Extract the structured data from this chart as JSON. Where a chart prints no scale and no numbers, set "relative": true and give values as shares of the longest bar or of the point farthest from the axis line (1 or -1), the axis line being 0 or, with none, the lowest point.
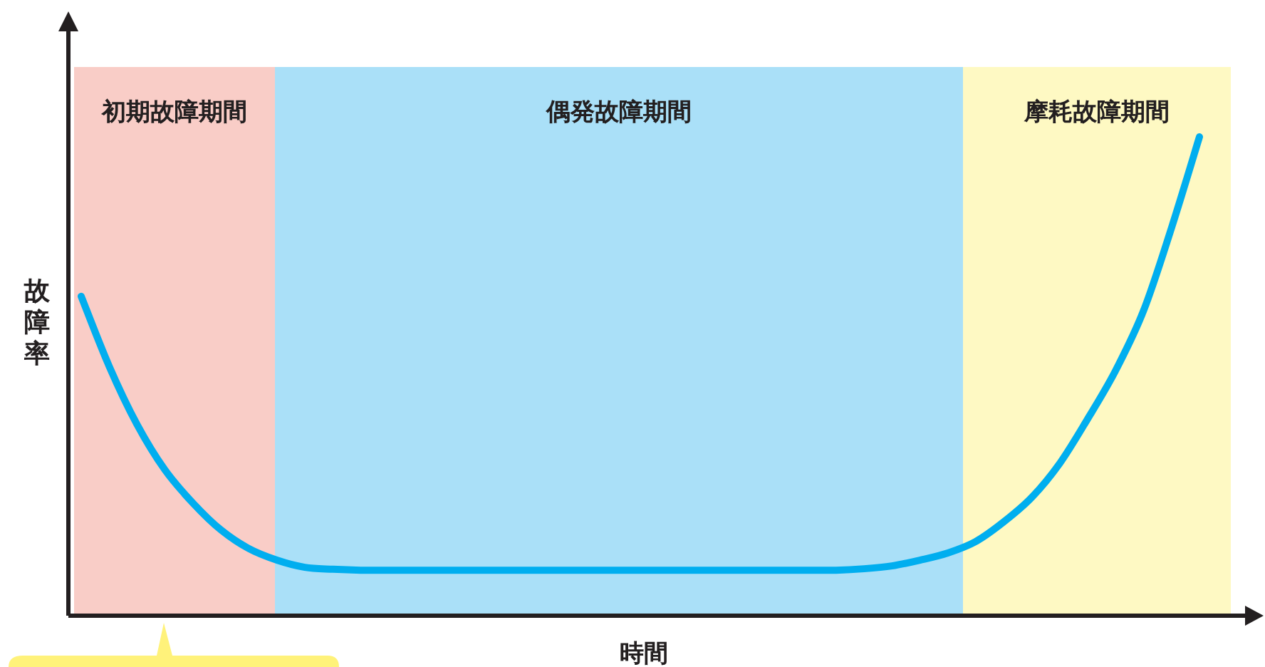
{
  "chart_data": {
    "type": "line",
    "relative": true,
    "xlabel": "時間",
    "ylabel": "故障率",
    "categories": [
      null,
      null,
      null,
      null,
      null,
      null,
      null,
      null,
      null,
      null,
      null,
      null,
      null,
      null,
      null,
      null,
      null,
      null,
      null,
      null,
      null,
      null,
      null,
      null,
      null,
      null,
      null,
      null,
      null,
      null,
      null,
      null,
      null,
      null,
      null,
      null,
      null,
      null,
      null,
      null,
      null
    ],
    "series": [
      {
        "color": "#00aeef",
        "values": [
          0.667,
          0.521,
          0.399,
          0.304,
          0.235,
          0.179,
          0.14,
          0.116,
          0.101,
          0.097,
          0.095,
          0.095,
          0.095,
          0.095,
          0.095,
          0.095,
          0.095,
          0.095,
          0.095,
          0.095,
          0.095,
          0.095,
          0.095,
          0.095,
          0.095,
          0.095,
          0.095,
          0.095,
          0.098,
          0.104,
          0.116,
          0.131,
          0.155,
          0.196,
          0.247,
          0.318,
          0.411,
          0.512,
          0.637,
          0.81,
          1
        ]
      }
    ],
    "annotations": [
      "初期故障期間",
      "偶発故障期間",
      "摩耗故障期間"
    ]
  }
}
